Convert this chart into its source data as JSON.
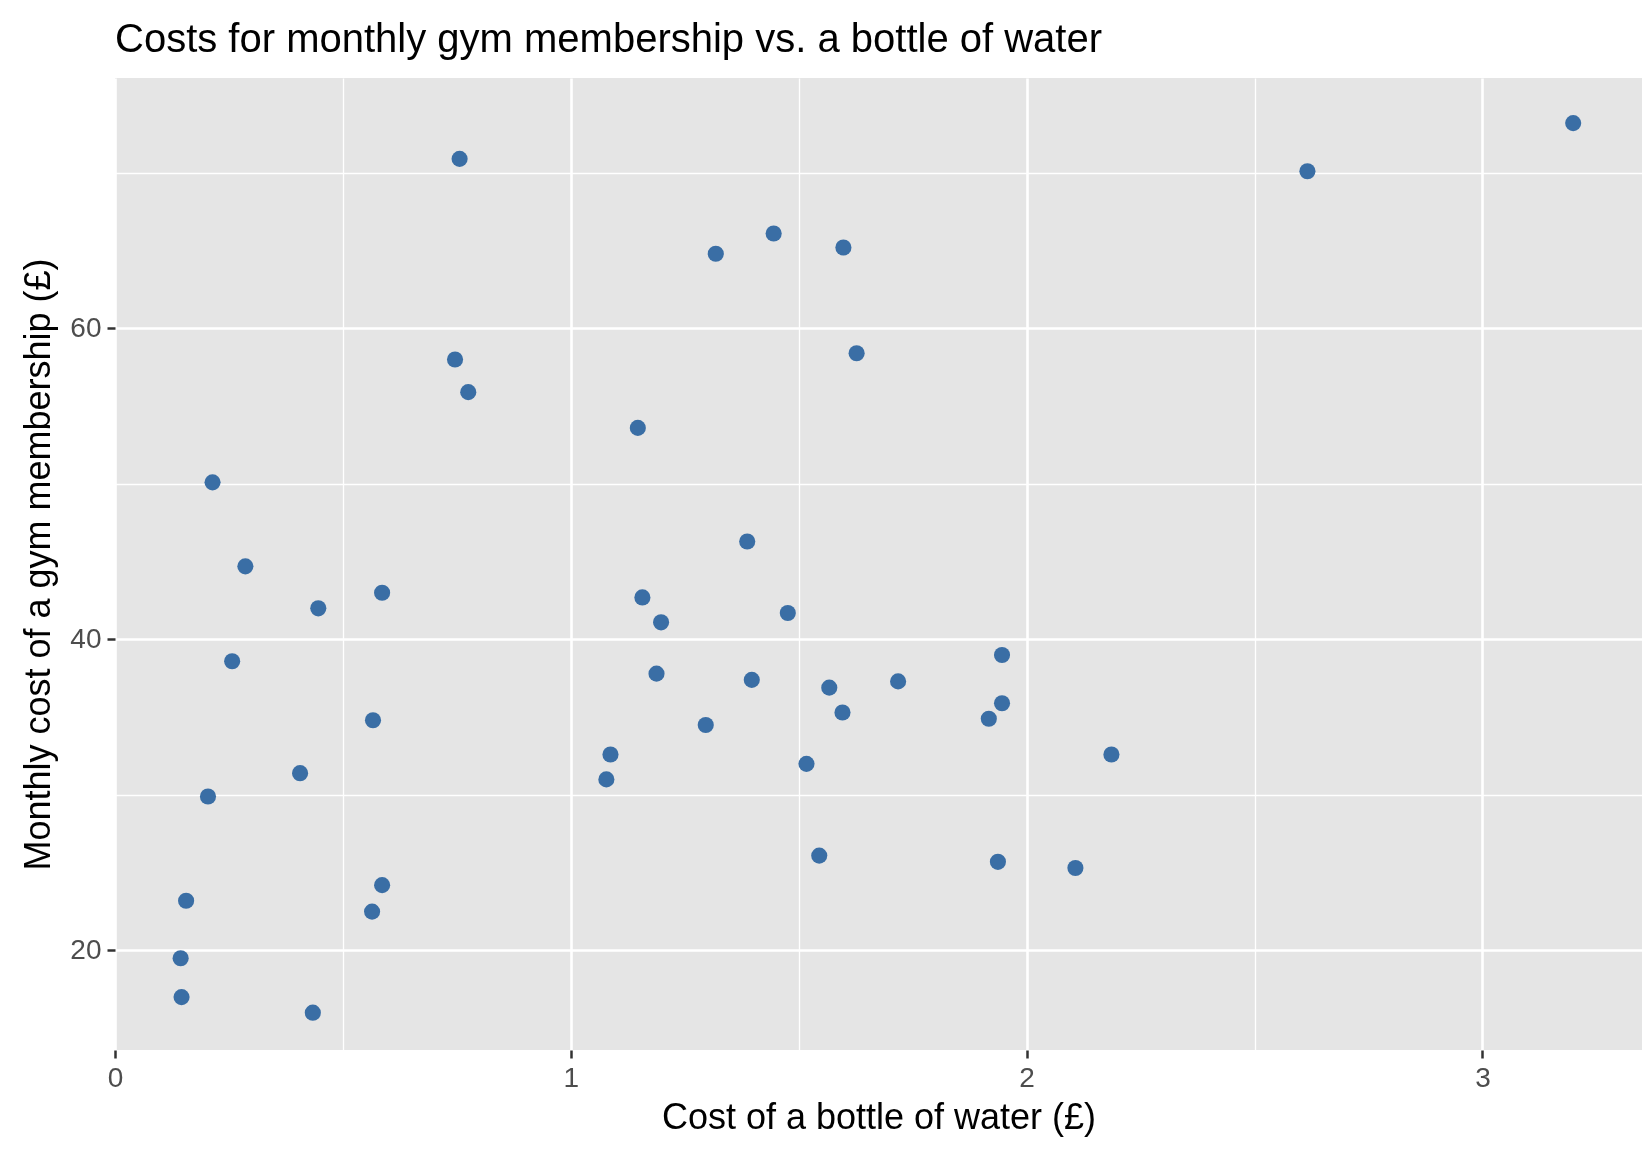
{
  "chart_data": {
    "type": "scatter",
    "title": "Costs for monthly gym membership vs. a bottle of water",
    "xlabel": "Cost of a bottle of water (£)",
    "ylabel": "Monthly cost of a gym membership (£)",
    "xlim": [
      0,
      3.35
    ],
    "ylim": [
      13.6,
      76.1
    ],
    "xticks": [
      0,
      {
        "value": 0.5,
        "label": null
      },
      1,
      {
        "value": 1.5,
        "label": null
      },
      2,
      {
        "value": 2.5,
        "label": null
      },
      3
    ],
    "yticks": [
      20,
      {
        "value": 30,
        "label": null
      },
      40,
      {
        "value": 50,
        "label": null
      },
      60,
      {
        "value": 70,
        "label": null
      }
    ],
    "grid": true,
    "marker": "circle",
    "series": [
      {
        "color": "#3a6ea5",
        "x": [
          0.756,
          0.746,
          0.775,
          0.214,
          0.286,
          0.446,
          0.586,
          0.257,
          0.566,
          0.406,
          0.204,
          0.586,
          0.564,
          0.156,
          0.144,
          0.146,
          0.434,
          1.318,
          1.445,
          1.598,
          1.627,
          1.147,
          1.387,
          1.157,
          1.198,
          1.476,
          1.188,
          1.397,
          1.567,
          1.718,
          1.596,
          1.296,
          1.087,
          1.078,
          1.517,
          1.545,
          1.946,
          1.946,
          1.917,
          1.937,
          2.107,
          2.186,
          2.616,
          3.199
        ],
        "values": [
          70.9,
          58.0,
          55.9,
          50.1,
          44.7,
          42.0,
          43.0,
          38.6,
          34.8,
          31.4,
          29.9,
          24.2,
          22.5,
          23.2,
          19.5,
          17.0,
          16.0,
          64.8,
          66.1,
          65.2,
          58.4,
          53.6,
          46.3,
          42.7,
          41.1,
          41.7,
          37.8,
          37.4,
          36.9,
          37.3,
          35.3,
          34.5,
          32.6,
          31.0,
          32.0,
          26.1,
          39.0,
          35.9,
          34.9,
          25.7,
          25.3,
          32.6,
          70.1,
          73.2
        ]
      }
    ]
  }
}
